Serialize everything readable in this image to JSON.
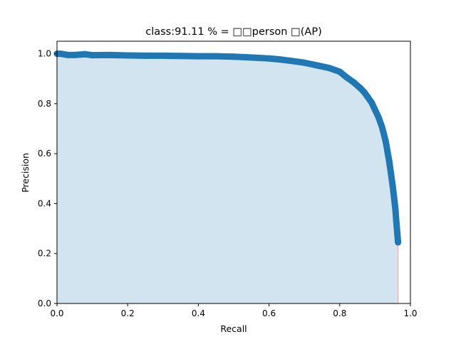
{
  "chart_data": {
    "type": "area",
    "title": "class:91.11 % = □□person □(AP)",
    "xlabel": "Recall",
    "ylabel": "Precision",
    "xlim": [
      0.0,
      1.0
    ],
    "ylim": [
      0.0,
      1.05
    ],
    "xticks": [
      "0.0",
      "0.2",
      "0.4",
      "0.6",
      "0.8",
      "1.0"
    ],
    "yticks": [
      "0.0",
      "0.2",
      "0.4",
      "0.6",
      "0.8",
      "1.0"
    ],
    "grid": false,
    "series": [
      {
        "color": "#1f77b4",
        "fill_color": "#1f77b4",
        "fill_opacity": 0.2,
        "x": [
          0.0,
          0.01,
          0.03,
          0.05,
          0.08,
          0.1,
          0.15,
          0.2,
          0.25,
          0.3,
          0.35,
          0.4,
          0.45,
          0.5,
          0.55,
          0.6,
          0.63,
          0.66,
          0.7,
          0.74,
          0.77,
          0.8,
          0.82,
          0.84,
          0.86,
          0.87,
          0.88,
          0.89,
          0.9,
          0.91,
          0.92,
          0.93,
          0.935,
          0.94,
          0.945,
          0.95,
          0.955,
          0.958,
          0.96,
          0.963,
          0.965
        ],
        "y": [
          1.0,
          1.0,
          0.995,
          0.995,
          0.998,
          0.994,
          0.995,
          0.993,
          0.992,
          0.992,
          0.991,
          0.99,
          0.99,
          0.988,
          0.985,
          0.981,
          0.977,
          0.972,
          0.964,
          0.952,
          0.943,
          0.928,
          0.905,
          0.885,
          0.86,
          0.845,
          0.825,
          0.805,
          0.775,
          0.745,
          0.705,
          0.65,
          0.61,
          0.57,
          0.52,
          0.47,
          0.41,
          0.37,
          0.33,
          0.28,
          0.245
        ]
      }
    ],
    "cutoff_line": {
      "x": 0.965,
      "color": "#e8b0b0"
    }
  }
}
